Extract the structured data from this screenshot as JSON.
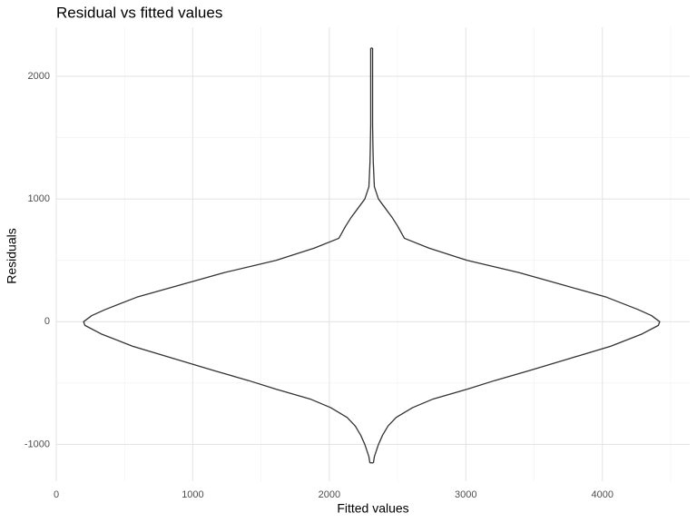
{
  "chart_data": {
    "type": "violin",
    "title": "Residual vs fitted values",
    "x_label": "Fitted values",
    "y_label": "Residuals",
    "xlim": [
      0,
      4640
    ],
    "ylim": [
      -1300,
      2400
    ],
    "xticks": [
      0,
      1000,
      2000,
      3000,
      4000
    ],
    "yticks": [
      -1000,
      0,
      1000,
      2000
    ],
    "x_minor_ticks": [
      500,
      1500,
      2500,
      3500,
      4500
    ],
    "y_minor_ticks": [
      -500,
      500,
      1500
    ],
    "grid": true,
    "color": "#333333",
    "violin": {
      "x_center": 2310,
      "y": [
        -1150,
        -1100,
        -1000,
        -925,
        -850,
        -780,
        -700,
        -630,
        -550,
        -480,
        -400,
        -300,
        -200,
        -100,
        -30,
        0,
        50,
        100,
        200,
        300,
        400,
        500,
        600,
        680,
        720,
        780,
        850,
        925,
        1000,
        1100,
        1300,
        1400,
        1600,
        2230
      ],
      "half_width": [
        13,
        20,
        50,
        80,
        120,
        180,
        300,
        450,
        700,
        900,
        1150,
        1450,
        1750,
        1980,
        2100,
        2110,
        2050,
        1950,
        1720,
        1400,
        1080,
        700,
        420,
        240,
        220,
        190,
        150,
        100,
        50,
        20,
        12,
        10,
        7,
        7
      ]
    }
  }
}
